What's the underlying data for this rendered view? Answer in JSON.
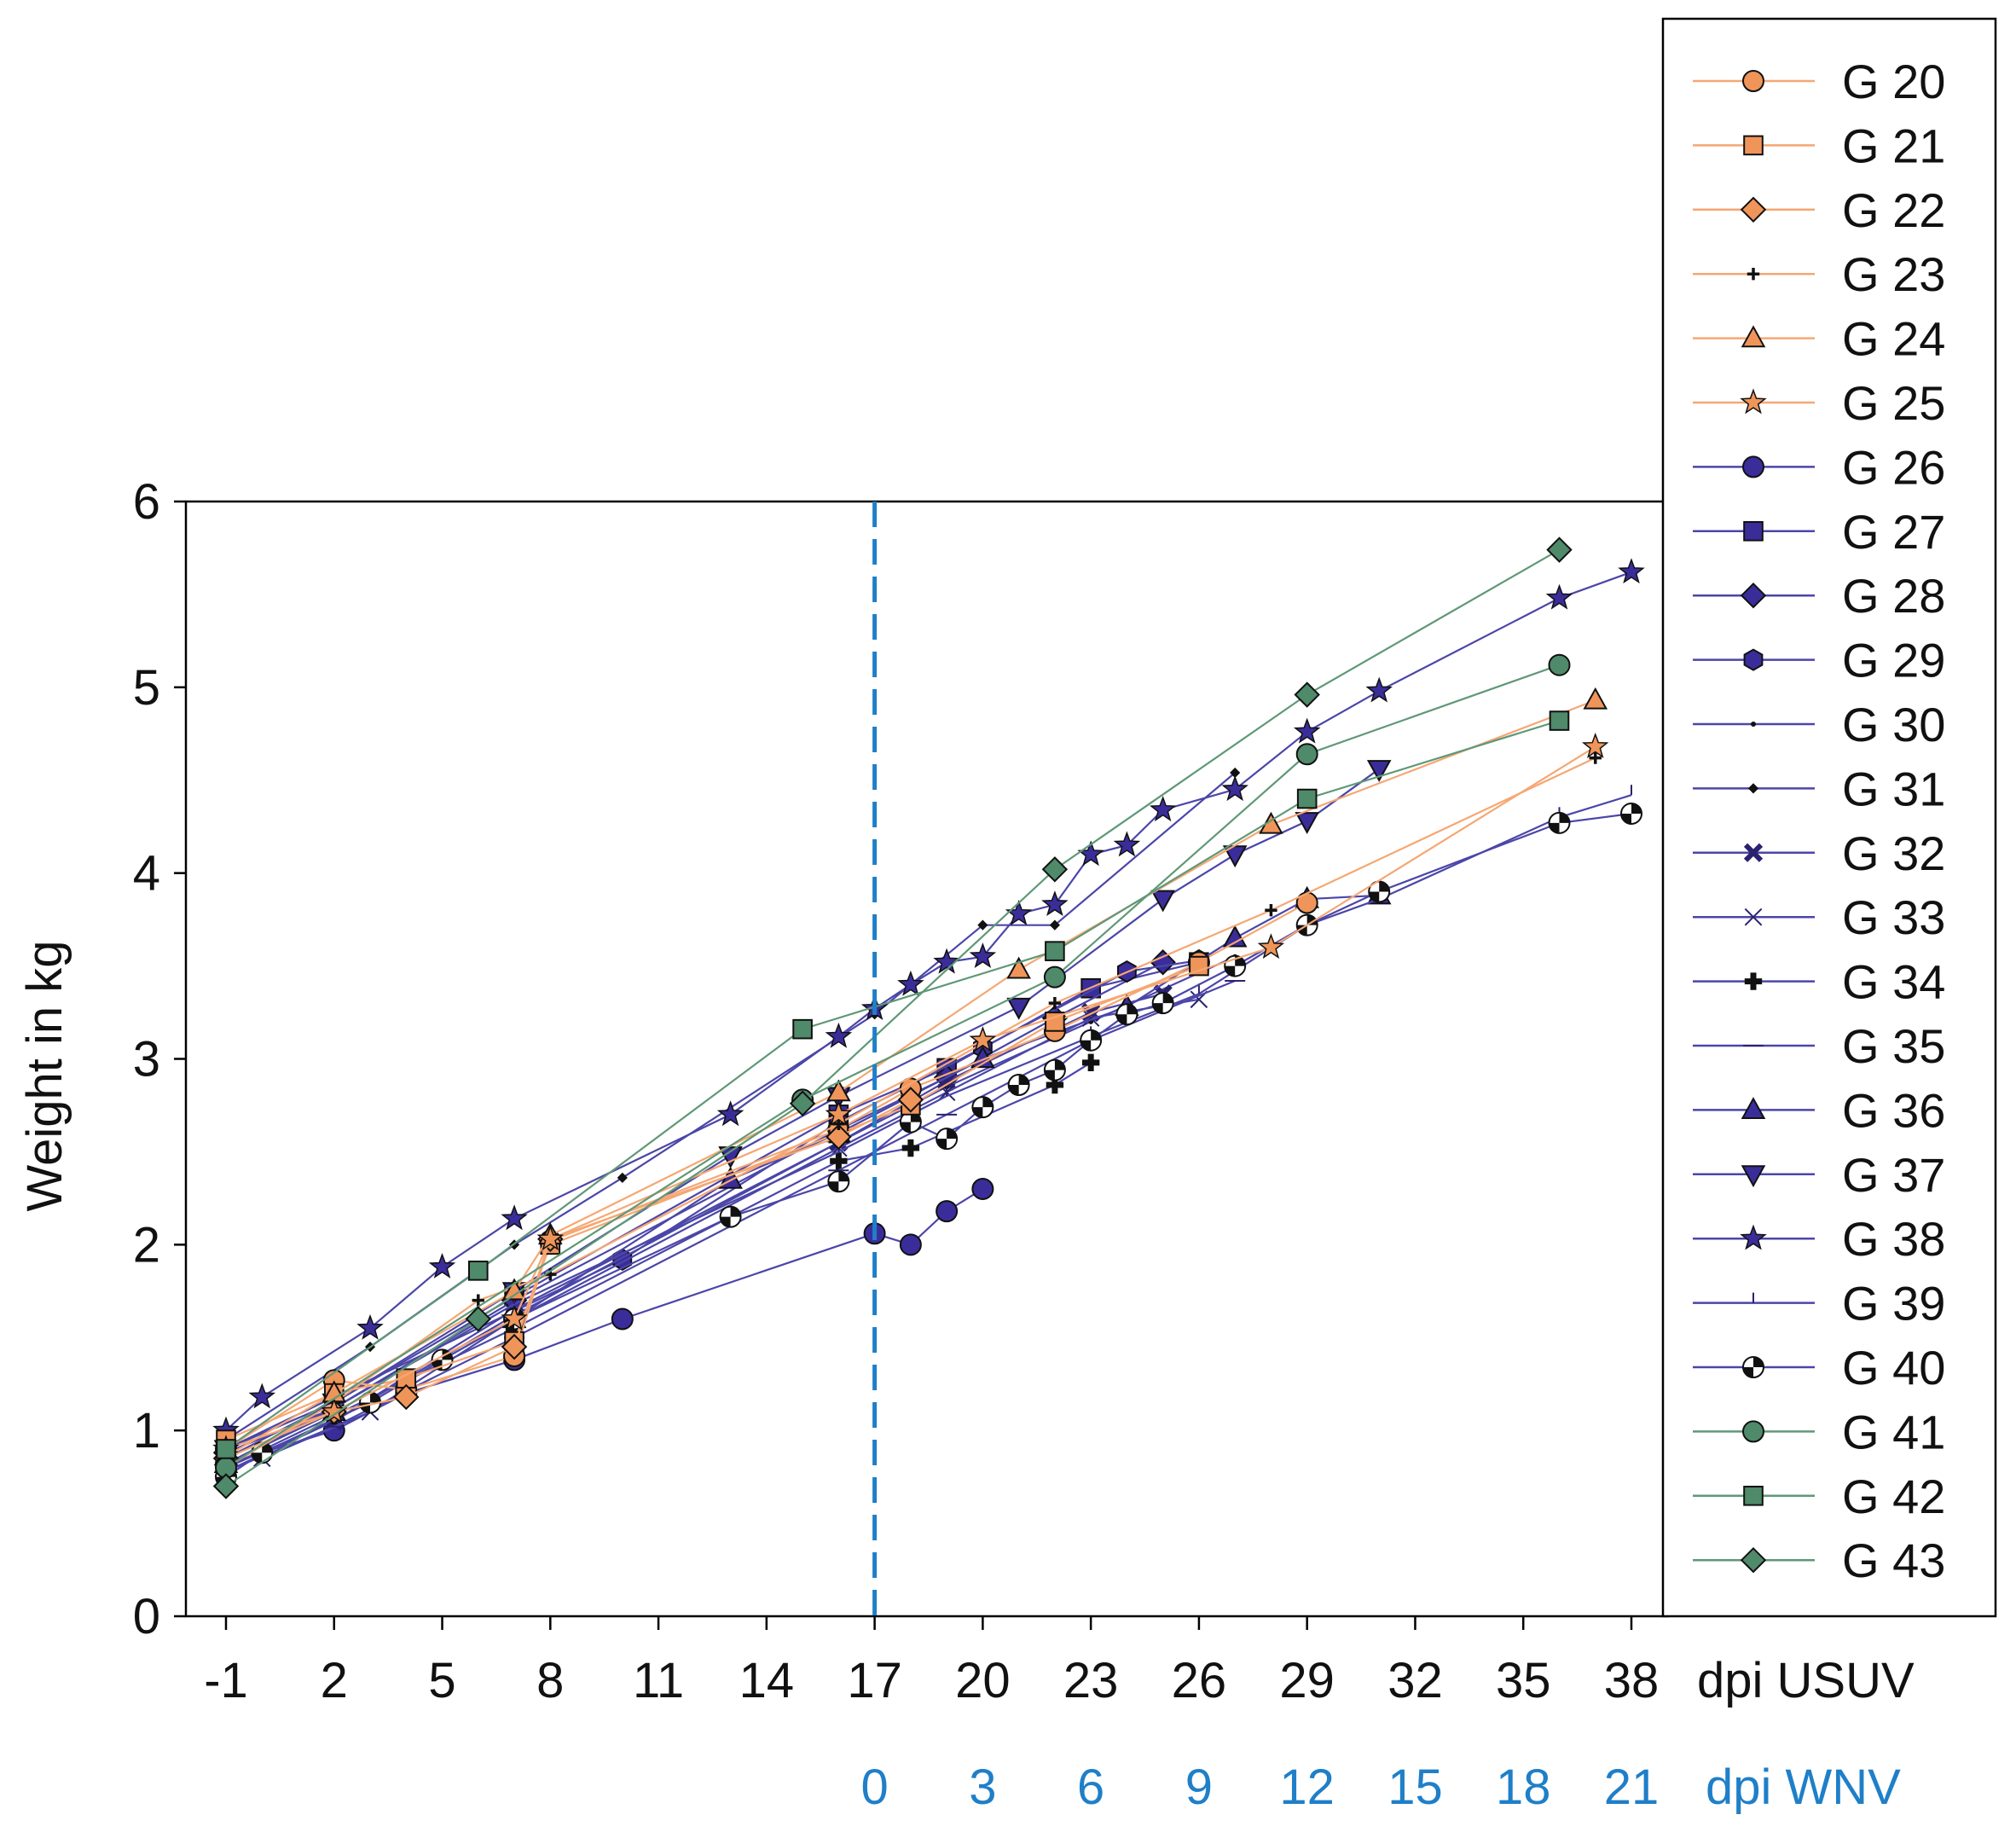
{
  "chart_data": {
    "type": "line",
    "title": "",
    "ylabel": "Weight in kg",
    "xlabel_primary": "dpi USUV",
    "xlabel_secondary": "dpi WNV",
    "xlim": [
      -1,
      38
    ],
    "ylim": [
      0,
      6
    ],
    "x_ticks": [
      -1,
      2,
      5,
      8,
      11,
      14,
      17,
      20,
      23,
      26,
      29,
      32,
      35,
      38
    ],
    "x_tick_labels": [
      "-1",
      "2",
      "5",
      "8",
      "11",
      "14",
      "17",
      "20",
      "23",
      "26",
      "29",
      "32",
      "35",
      "38"
    ],
    "y_ticks": [
      0,
      1,
      2,
      3,
      4,
      5,
      6
    ],
    "y_tick_labels": [
      "0",
      "1",
      "2",
      "3",
      "4",
      "5",
      "6"
    ],
    "secondary_ticks_x": [
      17,
      20,
      23,
      26,
      29,
      32,
      35,
      38
    ],
    "secondary_tick_labels": [
      "0",
      "3",
      "6",
      "9",
      "12",
      "15",
      "18",
      "21"
    ],
    "vline_x": 17,
    "colors": {
      "orange": "#f0955a",
      "orange_line": "#f5a773",
      "blue": "#3a2d9a",
      "blue_line": "#4b46a8",
      "green": "#4f8a6a",
      "green_line": "#5f9877",
      "dashed": "#1f7fc8",
      "secondary_axis_text": "#1f7fc8"
    },
    "legend_position": "right",
    "series": [
      {
        "name": "G 20",
        "group": "orange",
        "marker": "circle",
        "x": [
          -1,
          2,
          4,
          7,
          8,
          16,
          18,
          22,
          26,
          29
        ],
        "y": [
          0.9,
          1.27,
          1.22,
          1.4,
          2.02,
          2.62,
          2.84,
          3.15,
          3.52,
          3.84
        ]
      },
      {
        "name": "G 21",
        "group": "orange",
        "marker": "square",
        "x": [
          -1,
          2,
          4,
          7,
          8,
          16,
          18,
          22,
          26
        ],
        "y": [
          0.95,
          1.2,
          1.28,
          1.48,
          2.0,
          2.6,
          2.75,
          3.2,
          3.5
        ]
      },
      {
        "name": "G 22",
        "group": "orange",
        "marker": "diamond",
        "x": [
          -1,
          2,
          4,
          7,
          8,
          16,
          18
        ],
        "y": [
          0.85,
          1.1,
          1.18,
          1.45,
          2.03,
          2.58,
          2.78
        ]
      },
      {
        "name": "G 23",
        "group": "orange",
        "marker": "plus",
        "x": [
          -1,
          2,
          6,
          8,
          16,
          22,
          28,
          37
        ],
        "y": [
          0.8,
          1.15,
          1.7,
          1.84,
          2.65,
          3.3,
          3.8,
          4.62
        ]
      },
      {
        "name": "G 24",
        "group": "orange",
        "marker": "triangle-up",
        "x": [
          -1,
          2,
          7,
          8,
          16,
          21,
          28,
          37
        ],
        "y": [
          0.86,
          1.2,
          1.75,
          2.05,
          2.82,
          3.48,
          4.26,
          4.93
        ]
      },
      {
        "name": "G 25",
        "group": "orange",
        "marker": "star",
        "x": [
          -1,
          2,
          7,
          8,
          16,
          20,
          28,
          37
        ],
        "y": [
          0.9,
          1.1,
          1.6,
          2.03,
          2.7,
          3.1,
          3.6,
          4.68
        ]
      },
      {
        "name": "G 26",
        "group": "blue",
        "marker": "circle",
        "x": [
          -1,
          2,
          4,
          7,
          10,
          17,
          18,
          19,
          20
        ],
        "y": [
          0.82,
          1.0,
          1.2,
          1.38,
          1.6,
          2.06,
          2.0,
          2.18,
          2.3
        ]
      },
      {
        "name": "G 27",
        "group": "blue",
        "marker": "square",
        "x": [
          -1,
          2,
          7,
          16,
          19,
          23,
          26
        ],
        "y": [
          0.85,
          1.15,
          1.72,
          2.7,
          2.95,
          3.38,
          3.52
        ]
      },
      {
        "name": "G 28",
        "group": "blue",
        "marker": "diamond",
        "x": [
          -1,
          2,
          7,
          16,
          19,
          22,
          25
        ],
        "y": [
          0.88,
          1.12,
          1.7,
          2.62,
          2.9,
          3.22,
          3.52
        ]
      },
      {
        "name": "G 29",
        "group": "blue",
        "marker": "hexagon",
        "x": [
          -1,
          2,
          10,
          16,
          20,
          24,
          26
        ],
        "y": [
          0.9,
          1.18,
          1.92,
          2.66,
          3.06,
          3.47,
          3.53
        ]
      },
      {
        "name": "G 30",
        "group": "blue",
        "marker": "dot",
        "x": [
          -1,
          2,
          7,
          16,
          19,
          23,
          27
        ],
        "y": [
          0.8,
          1.05,
          1.65,
          2.55,
          2.85,
          3.2,
          3.55
        ]
      },
      {
        "name": "G 31",
        "group": "blue",
        "marker": "smalldiamond",
        "x": [
          -1,
          3,
          7,
          10,
          17,
          20,
          22,
          27
        ],
        "y": [
          0.95,
          1.45,
          2.0,
          2.36,
          3.24,
          3.72,
          3.72,
          4.54
        ]
      },
      {
        "name": "G 32",
        "group": "blue",
        "marker": "x-thick",
        "x": [
          -1,
          2,
          7,
          16,
          19,
          23,
          25
        ],
        "y": [
          0.78,
          1.05,
          1.62,
          2.55,
          2.88,
          3.25,
          3.35
        ]
      },
      {
        "name": "G 33",
        "group": "blue",
        "marker": "x-thin",
        "x": [
          0,
          3,
          7,
          16,
          19,
          23,
          26
        ],
        "y": [
          0.85,
          1.1,
          1.6,
          2.52,
          2.82,
          3.22,
          3.32
        ]
      },
      {
        "name": "G 34",
        "group": "blue",
        "marker": "plus-thick",
        "x": [
          -1,
          2,
          7,
          16,
          18,
          22,
          23
        ],
        "y": [
          0.8,
          1.08,
          1.55,
          2.45,
          2.52,
          2.86,
          2.98
        ]
      },
      {
        "name": "G 35",
        "group": "blue",
        "marker": "hline",
        "x": [
          -1,
          2,
          7,
          16,
          19,
          23,
          27
        ],
        "y": [
          0.78,
          1.02,
          1.5,
          2.4,
          2.7,
          3.1,
          3.42
        ]
      },
      {
        "name": "G 36",
        "group": "blue",
        "marker": "triangle-up",
        "x": [
          -1,
          2,
          7,
          13,
          16,
          20,
          24,
          27,
          29,
          31
        ],
        "y": [
          0.82,
          1.1,
          1.6,
          2.35,
          2.6,
          3.0,
          3.28,
          3.65,
          3.86,
          3.88
        ]
      },
      {
        "name": "G 37",
        "group": "blue",
        "marker": "triangle-down",
        "x": [
          -1,
          2,
          7,
          13,
          16,
          21,
          25,
          27,
          29,
          31
        ],
        "y": [
          0.9,
          1.15,
          1.75,
          2.48,
          2.8,
          3.28,
          3.86,
          4.1,
          4.28,
          4.56
        ]
      },
      {
        "name": "G 38",
        "group": "blue",
        "marker": "star",
        "x": [
          -1,
          0,
          3,
          5,
          7,
          13,
          16,
          17,
          18,
          19,
          20,
          21,
          22,
          23,
          24,
          25,
          27,
          29,
          31,
          36,
          38
        ],
        "y": [
          1.0,
          1.18,
          1.55,
          1.88,
          2.14,
          2.7,
          3.12,
          3.27,
          3.4,
          3.52,
          3.55,
          3.78,
          3.83,
          4.1,
          4.15,
          4.34,
          4.45,
          4.76,
          4.98,
          5.48,
          5.62
        ]
      },
      {
        "name": "G 39",
        "group": "blue",
        "marker": "vtick",
        "x": [
          -1,
          2,
          7,
          16,
          19,
          23,
          26,
          29,
          31,
          36,
          38
        ],
        "y": [
          0.82,
          1.12,
          1.68,
          2.5,
          2.8,
          3.12,
          3.35,
          3.72,
          3.86,
          4.3,
          4.42
        ]
      },
      {
        "name": "G 40",
        "group": "blue",
        "marker": "checker",
        "x": [
          -1,
          0,
          3,
          5,
          7,
          13,
          16,
          18,
          19,
          20,
          21,
          22,
          23,
          24,
          25,
          27,
          29,
          31,
          36,
          38
        ],
        "y": [
          0.75,
          0.88,
          1.15,
          1.38,
          1.6,
          2.15,
          2.34,
          2.66,
          2.57,
          2.74,
          2.86,
          2.94,
          3.1,
          3.24,
          3.3,
          3.5,
          3.72,
          3.9,
          4.27,
          4.32
        ]
      },
      {
        "name": "G 41",
        "group": "green",
        "marker": "circle",
        "x": [
          -1,
          15,
          22,
          29,
          36
        ],
        "y": [
          0.8,
          2.78,
          3.44,
          4.64,
          5.12
        ]
      },
      {
        "name": "G 42",
        "group": "green",
        "marker": "square",
        "x": [
          -1,
          6,
          15,
          22,
          29,
          36
        ],
        "y": [
          0.9,
          1.86,
          3.16,
          3.58,
          4.4,
          4.82
        ]
      },
      {
        "name": "G 43",
        "group": "green",
        "marker": "diamond",
        "x": [
          -1,
          6,
          15,
          22,
          29,
          36
        ],
        "y": [
          0.7,
          1.6,
          2.76,
          4.02,
          4.96,
          5.74
        ]
      }
    ]
  }
}
